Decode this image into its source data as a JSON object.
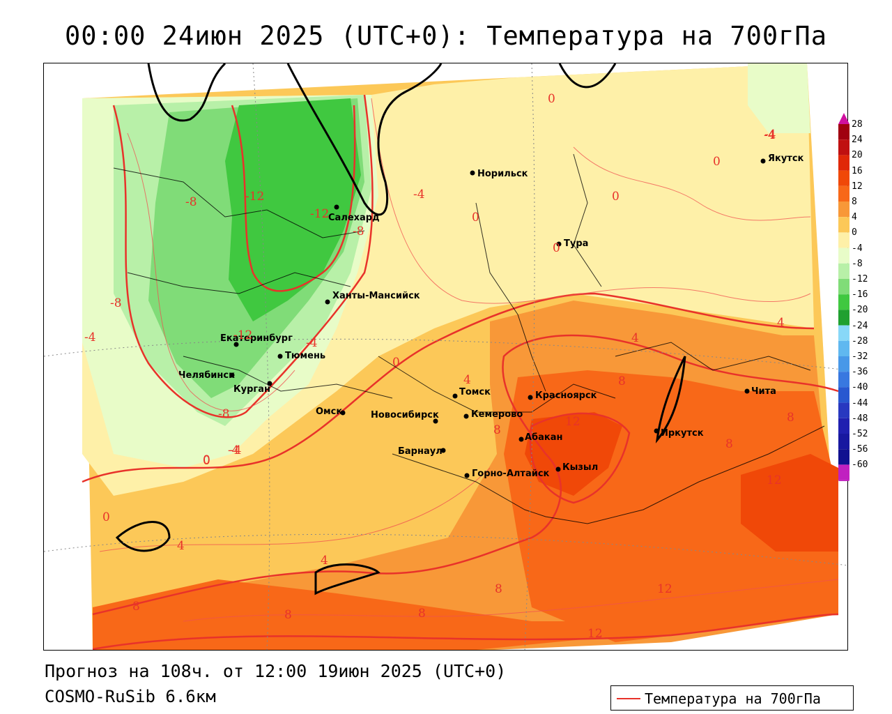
{
  "title": "00:00 24июн 2025 (UTC+0): Температура на 700гПа",
  "footer": {
    "forecast": "Прогноз на 108ч. от 12:00 19июн 2025 (UTC+0)",
    "model": "COSMO-RuSib 6.6км"
  },
  "legend": {
    "label": "Температура на 700гПа",
    "line_color": "#e8322a"
  },
  "color_scale": {
    "levels": [
      "28",
      "24",
      "20",
      "16",
      "12",
      "8",
      "4",
      "0",
      "-4",
      "-8",
      "-12",
      "-16",
      "-20",
      "-24",
      "-28",
      "-32",
      "-36",
      "-40",
      "-44",
      "-48",
      "-52",
      "-56",
      "-60"
    ],
    "colors": [
      "#a00010",
      "#c01010",
      "#e02808",
      "#f04808",
      "#f86818",
      "#f89838",
      "#fcc858",
      "#fef0a8",
      "#e8fcc8",
      "#b8f0a8",
      "#80dc78",
      "#40c840",
      "#20a030",
      "#88d8f8",
      "#60b8f0",
      "#4898e8",
      "#3878e0",
      "#2858d0",
      "#2838c0",
      "#2020b0",
      "#1818a0",
      "#101090",
      "#c020c0"
    ]
  },
  "cities": [
    {
      "name": "Норильск"
    },
    {
      "name": "Якутск"
    },
    {
      "name": "Салехард"
    },
    {
      "name": "Тура"
    },
    {
      "name": "Ханты-Мансийск"
    },
    {
      "name": "Екатеринбург"
    },
    {
      "name": "Тюмень"
    },
    {
      "name": "Челябинск"
    },
    {
      "name": "Курган"
    },
    {
      "name": "Омск"
    },
    {
      "name": "Новосибирск"
    },
    {
      "name": "Томск"
    },
    {
      "name": "Кемерово"
    },
    {
      "name": "Барнаул"
    },
    {
      "name": "Красноярск"
    },
    {
      "name": "Абакан"
    },
    {
      "name": "Кызыл"
    },
    {
      "name": "Горно-Алтайск"
    },
    {
      "name": "Иркутск"
    },
    {
      "name": "Чита"
    }
  ],
  "isotherm_labels": [
    "0",
    "-4",
    "0",
    "0",
    "-8",
    "-12",
    "-12",
    "-8",
    "-4",
    "0",
    "0",
    "-8",
    "-4",
    "-12",
    "-4",
    "0",
    "4",
    "4",
    "-8",
    "-4",
    "0",
    "8",
    "4",
    "-4",
    "8",
    "12",
    "8",
    "12",
    "8",
    "8",
    "0",
    "4",
    "4",
    "8",
    "8",
    "8",
    "12",
    "-4",
    "0",
    "12"
  ]
}
